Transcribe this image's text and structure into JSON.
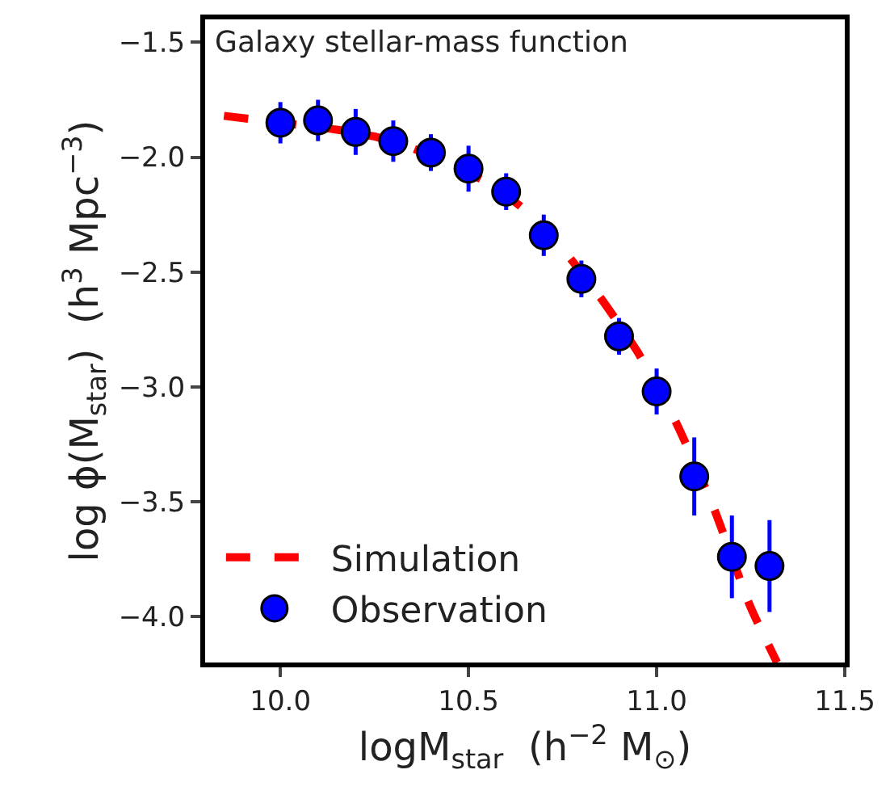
{
  "chart_data": {
    "type": "scatter",
    "annotations": [
      "Galaxy stellar-mass function"
    ],
    "xlabel": "logM$_{star}$  (h$^{−2}$ M$_{⊙}$)",
    "ylabel": "log ϕ(M$_{star}$)  (h$^{3}$ Mpc$^{−3}$)",
    "xlim": [
      9.8,
      11.5
    ],
    "xticks": [
      {
        "value": 10.0,
        "label": "10.0"
      },
      10.5,
      {
        "value": 11.0,
        "label": "11.0"
      },
      11.5
    ],
    "ylim": [
      -4.2,
      -1.4
    ],
    "yticks": [
      {
        "value": -4.0,
        "label": "−4.0"
      },
      {
        "value": -3.5,
        "label": "−3.5"
      },
      {
        "value": -3.0,
        "label": "−3.0"
      },
      {
        "value": -2.5,
        "label": "−2.5"
      },
      {
        "value": -2.0,
        "label": "−2.0"
      },
      {
        "value": -1.5,
        "label": "−1.5"
      }
    ],
    "legend": "bottom left",
    "series": [
      {
        "name": "Simulation",
        "type": "line",
        "color": "#ff0000",
        "line_style": "dashed",
        "marker": "none",
        "x": [
          9.85,
          10.05,
          10.15,
          10.25,
          10.35,
          10.55,
          10.65,
          10.75,
          10.85,
          10.95,
          11.05,
          11.15,
          11.25,
          11.32
        ],
        "values": [
          -1.82,
          -1.86,
          -1.88,
          -1.91,
          -1.96,
          -2.11,
          -2.23,
          -2.4,
          -2.61,
          -2.85,
          -3.15,
          -3.52,
          -3.96,
          -4.2
        ]
      },
      {
        "name": "Observation",
        "color": "#0000ff",
        "marker": "circle",
        "x": [
          10.0,
          10.1,
          10.2,
          10.3,
          10.4,
          10.5,
          10.6,
          10.7,
          10.8,
          10.9,
          11.0,
          11.1,
          11.2,
          11.3
        ],
        "values": [
          -1.85,
          -1.84,
          -1.89,
          -1.93,
          -1.98,
          -2.05,
          -2.15,
          -2.34,
          -2.53,
          -2.78,
          -3.02,
          -3.39,
          -3.74,
          -3.78
        ],
        "errors": [
          0.09,
          0.09,
          0.1,
          0.09,
          0.08,
          0.1,
          0.08,
          0.09,
          0.08,
          0.08,
          0.1,
          0.17,
          0.18,
          0.2
        ]
      }
    ]
  }
}
